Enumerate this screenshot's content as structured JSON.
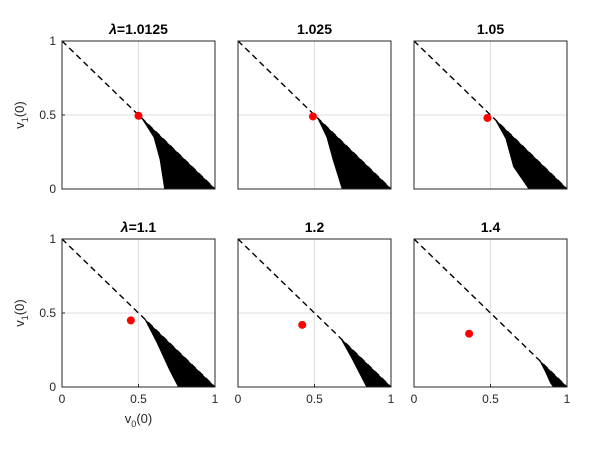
{
  "chart_data": [
    {
      "type": "area",
      "title": "λ=1.0125",
      "title_prefix": "λ",
      "title_value": "=1.0125",
      "xlim": [
        0,
        1
      ],
      "ylim": [
        0,
        1
      ],
      "x_ticks": [],
      "y_ticks": [
        "0",
        "0.5",
        "1"
      ],
      "ylabel": "v1(0)",
      "xlabel": "",
      "grid": true,
      "dashed_line": [
        [
          0,
          1
        ],
        [
          1,
          0
        ]
      ],
      "red_point": [
        0.5,
        0.495
      ],
      "region": {
        "apex": [
          0.52,
          0.48
        ],
        "left_edge": [
          [
            0.52,
            0.48
          ],
          [
            0.6,
            0.35
          ],
          [
            0.64,
            0.2
          ],
          [
            0.67,
            0
          ]
        ],
        "base_end": 1
      }
    },
    {
      "type": "area",
      "title": "1.025",
      "title_prefix": "",
      "title_value": "1.025",
      "xlim": [
        0,
        1
      ],
      "ylim": [
        0,
        1
      ],
      "x_ticks": [],
      "y_ticks": [],
      "ylabel": "",
      "xlabel": "",
      "grid": true,
      "dashed_line": [
        [
          0,
          1
        ],
        [
          1,
          0
        ]
      ],
      "red_point": [
        0.49,
        0.49
      ],
      "region": {
        "apex": [
          0.52,
          0.48
        ],
        "left_edge": [
          [
            0.52,
            0.48
          ],
          [
            0.58,
            0.35
          ],
          [
            0.62,
            0.2
          ],
          [
            0.68,
            0
          ]
        ],
        "base_end": 1
      }
    },
    {
      "type": "area",
      "title": "1.05",
      "title_prefix": "",
      "title_value": "1.05",
      "xlim": [
        0,
        1
      ],
      "ylim": [
        0,
        1
      ],
      "x_ticks": [],
      "y_ticks": [],
      "ylabel": "",
      "xlabel": "",
      "grid": true,
      "dashed_line": [
        [
          0,
          1
        ],
        [
          1,
          0
        ]
      ],
      "red_point": [
        0.48,
        0.48
      ],
      "region": {
        "apex": [
          0.53,
          0.47
        ],
        "left_edge": [
          [
            0.53,
            0.47
          ],
          [
            0.6,
            0.34
          ],
          [
            0.65,
            0.15
          ],
          [
            0.75,
            0
          ]
        ],
        "base_end": 1
      }
    },
    {
      "type": "area",
      "title": "λ=1.1",
      "title_prefix": "λ",
      "title_value": "=1.1",
      "xlim": [
        0,
        1
      ],
      "ylim": [
        0,
        1
      ],
      "x_ticks": [
        "0",
        "0.5",
        "1"
      ],
      "y_ticks": [
        "0",
        "0.5",
        "1"
      ],
      "ylabel": "v1(0)",
      "xlabel": "v0(0)",
      "grid": true,
      "dashed_line": [
        [
          0,
          1
        ],
        [
          1,
          0
        ]
      ],
      "red_point": [
        0.45,
        0.45
      ],
      "region": {
        "apex": [
          0.54,
          0.46
        ],
        "left_edge": [
          [
            0.54,
            0.46
          ],
          [
            0.62,
            0.3
          ],
          [
            0.7,
            0.12
          ],
          [
            0.76,
            0
          ]
        ],
        "base_end": 1
      }
    },
    {
      "type": "area",
      "title": "1.2",
      "title_prefix": "",
      "title_value": "1.2",
      "xlim": [
        0,
        1
      ],
      "ylim": [
        0,
        1
      ],
      "x_ticks": [
        "0",
        "0.5",
        "1"
      ],
      "y_ticks": [],
      "ylabel": "",
      "xlabel": "",
      "grid": true,
      "dashed_line": [
        [
          0,
          1
        ],
        [
          1,
          0
        ]
      ],
      "red_point": [
        0.42,
        0.42
      ],
      "region": {
        "apex": [
          0.67,
          0.33
        ],
        "left_edge": [
          [
            0.67,
            0.33
          ],
          [
            0.74,
            0.2
          ],
          [
            0.8,
            0.08
          ],
          [
            0.84,
            0
          ]
        ],
        "base_end": 1
      }
    },
    {
      "type": "area",
      "title": "1.4",
      "title_prefix": "",
      "title_value": "1.4",
      "xlim": [
        0,
        1
      ],
      "ylim": [
        0,
        1
      ],
      "x_ticks": [
        "0",
        "0.5",
        "1"
      ],
      "y_ticks": [],
      "ylabel": "",
      "xlabel": "",
      "grid": true,
      "dashed_line": [
        [
          0,
          1
        ],
        [
          1,
          0
        ]
      ],
      "red_point": [
        0.36,
        0.36
      ],
      "region": {
        "apex": [
          0.82,
          0.18
        ],
        "left_edge": [
          [
            0.82,
            0.18
          ],
          [
            0.86,
            0.1
          ],
          [
            0.89,
            0.03
          ],
          [
            0.91,
            0
          ]
        ],
        "base_end": 1
      }
    }
  ],
  "colors": {
    "region": "#000000",
    "point": "#ff0000",
    "grid": "#dfdfdf",
    "axis": "#262626",
    "dash": "#000000"
  }
}
